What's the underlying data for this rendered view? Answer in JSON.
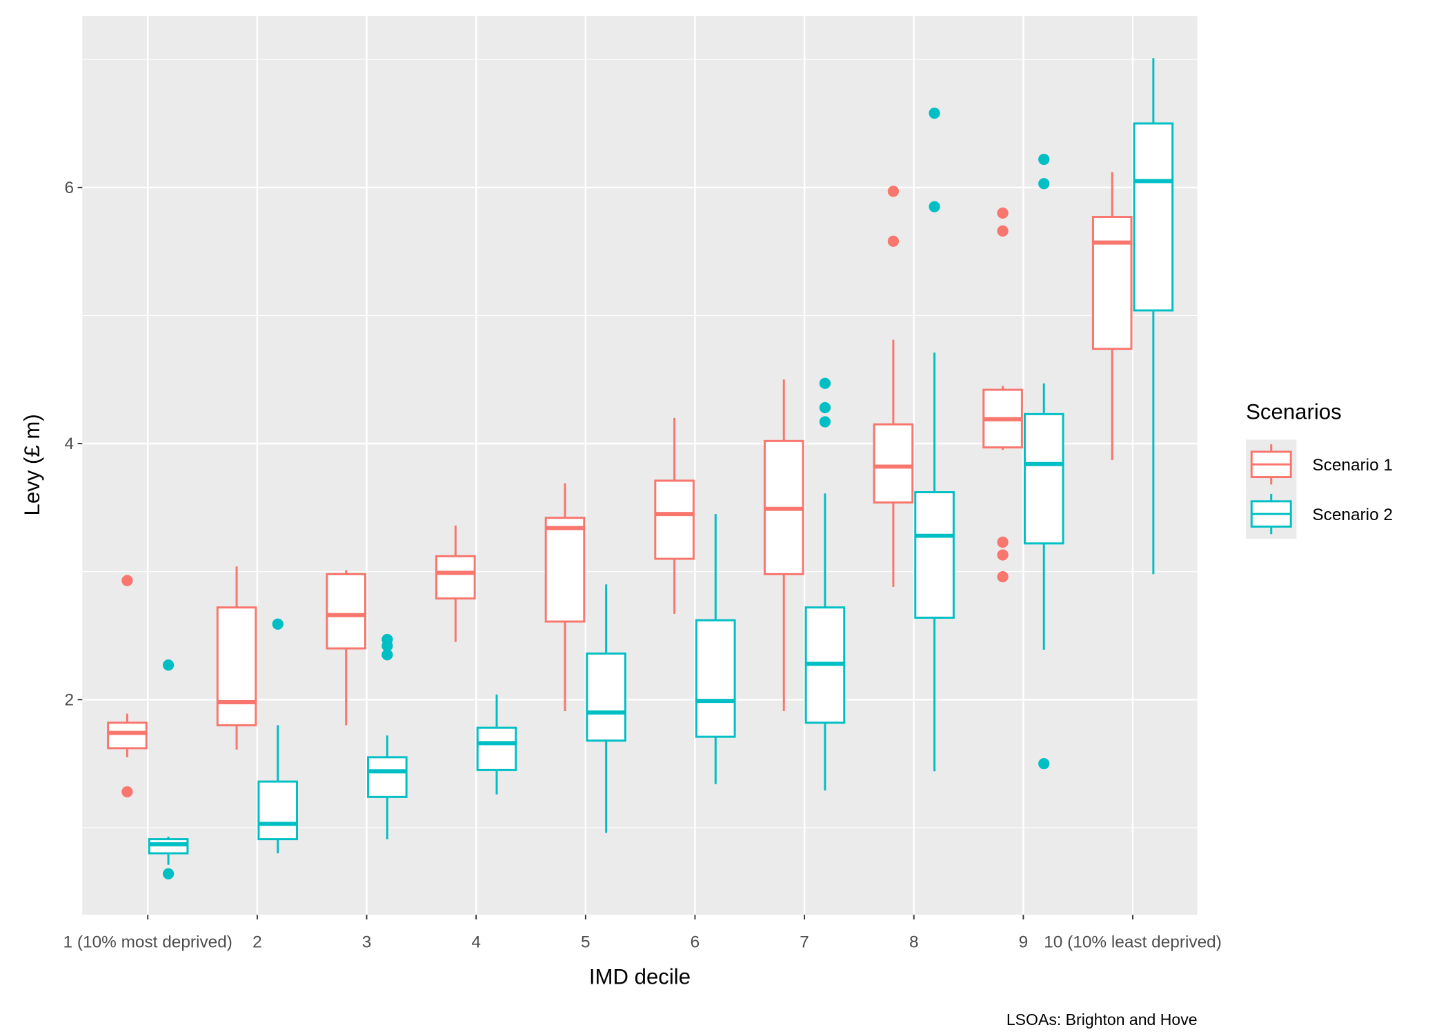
{
  "chart_data": {
    "type": "box",
    "x_label": "IMD decile",
    "y_label": "Levy (£ m)",
    "caption": "LSOAs: Brighton and Hove",
    "legend_title": "Scenarios",
    "legend_position": "right",
    "categories": [
      "1 (10% most deprived)",
      "2",
      "3",
      "4",
      "5",
      "6",
      "7",
      "8",
      "9",
      "10 (10% least deprived)"
    ],
    "ylim": [
      0.32,
      7.34
    ],
    "yticks": [
      2,
      4,
      6
    ],
    "y_minor_grid": [
      1,
      3,
      5,
      7
    ],
    "grid": true,
    "series": [
      {
        "name": "Scenario 1",
        "color": "#f8766d",
        "boxes": [
          {
            "min": 1.55,
            "q1": 1.62,
            "median": 1.74,
            "q3": 1.82,
            "max": 1.89,
            "outliers": [
              2.93,
              1.28
            ]
          },
          {
            "min": 1.61,
            "q1": 1.8,
            "median": 1.98,
            "q3": 2.72,
            "max": 3.04,
            "outliers": []
          },
          {
            "min": 1.8,
            "q1": 2.4,
            "median": 2.66,
            "q3": 2.98,
            "max": 3.01,
            "outliers": []
          },
          {
            "min": 2.45,
            "q1": 2.79,
            "median": 2.99,
            "q3": 3.12,
            "max": 3.36,
            "outliers": []
          },
          {
            "min": 1.91,
            "q1": 2.61,
            "median": 3.34,
            "q3": 3.42,
            "max": 3.69,
            "outliers": []
          },
          {
            "min": 2.67,
            "q1": 3.1,
            "median": 3.45,
            "q3": 3.71,
            "max": 4.2,
            "outliers": []
          },
          {
            "min": 1.91,
            "q1": 2.98,
            "median": 3.49,
            "q3": 4.02,
            "max": 4.5,
            "outliers": []
          },
          {
            "min": 2.88,
            "q1": 3.54,
            "median": 3.82,
            "q3": 4.15,
            "max": 4.81,
            "outliers": [
              5.97,
              5.58
            ]
          },
          {
            "min": 3.95,
            "q1": 3.97,
            "median": 4.19,
            "q3": 4.42,
            "max": 4.45,
            "outliers": [
              5.8,
              5.66,
              3.23,
              3.13,
              2.96
            ]
          },
          {
            "min": 3.87,
            "q1": 4.74,
            "median": 5.57,
            "q3": 5.77,
            "max": 6.12,
            "outliers": []
          }
        ]
      },
      {
        "name": "Scenario 2",
        "color": "#00bfc4",
        "boxes": [
          {
            "min": 0.71,
            "q1": 0.8,
            "median": 0.87,
            "q3": 0.91,
            "max": 0.93,
            "outliers": [
              2.27,
              0.64
            ]
          },
          {
            "min": 0.8,
            "q1": 0.91,
            "median": 1.03,
            "q3": 1.36,
            "max": 1.8,
            "outliers": [
              2.59
            ]
          },
          {
            "min": 0.91,
            "q1": 1.24,
            "median": 1.44,
            "q3": 1.55,
            "max": 1.72,
            "outliers": [
              2.47,
              2.42,
              2.35
            ]
          },
          {
            "min": 1.26,
            "q1": 1.45,
            "median": 1.66,
            "q3": 1.78,
            "max": 2.04,
            "outliers": []
          },
          {
            "min": 0.96,
            "q1": 1.68,
            "median": 1.9,
            "q3": 2.36,
            "max": 2.9,
            "outliers": []
          },
          {
            "min": 1.34,
            "q1": 1.71,
            "median": 1.99,
            "q3": 2.62,
            "max": 3.45,
            "outliers": []
          },
          {
            "min": 1.29,
            "q1": 1.82,
            "median": 2.28,
            "q3": 2.72,
            "max": 3.61,
            "outliers": [
              4.47,
              4.28,
              4.17
            ]
          },
          {
            "min": 1.44,
            "q1": 2.64,
            "median": 3.28,
            "q3": 3.62,
            "max": 4.71,
            "outliers": [
              6.58,
              5.85
            ]
          },
          {
            "min": 2.39,
            "q1": 3.22,
            "median": 3.84,
            "q3": 4.23,
            "max": 4.47,
            "outliers": [
              6.22,
              6.03,
              1.5
            ]
          },
          {
            "min": 2.98,
            "q1": 5.04,
            "median": 6.05,
            "q3": 6.5,
            "max": 7.01,
            "outliers": []
          }
        ]
      }
    ]
  }
}
